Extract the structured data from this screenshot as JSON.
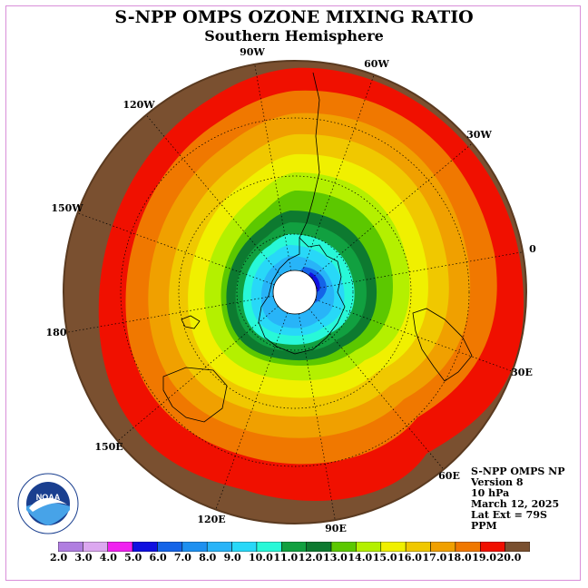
{
  "title": "S-NPP OMPS OZONE MIXING RATIO",
  "subtitle": "Southern Hemisphere",
  "longitude_labels": [
    "90W",
    "60W",
    "30W",
    "0",
    "30E",
    "60E",
    "90E",
    "120E",
    "150E",
    "180",
    "150W",
    "120W"
  ],
  "info": {
    "line1": "S-NPP OMPS NP",
    "line2": "Version 8",
    "line3": "10 hPa",
    "line4": "March 12, 2025",
    "line5": "Lat Ext = 79S",
    "line6": "PPM"
  },
  "logo_text": "NOAA",
  "colorbar": {
    "labels": [
      "2.0",
      "3.0",
      "4.0",
      "5.0",
      "6.0",
      "7.0",
      "8.0",
      "9.0",
      "10.0",
      "11.0",
      "12.0",
      "13.0",
      "14.0",
      "15.0",
      "16.0",
      "17.0",
      "18.0",
      "19.0",
      "20.0"
    ],
    "colors": [
      "#b07ee0",
      "#dca8f0",
      "#f020f0",
      "#1010e0",
      "#1464e8",
      "#1e90f0",
      "#28b4f8",
      "#28d8f8",
      "#28f8d8",
      "#11a040",
      "#0d7a30",
      "#5cc800",
      "#b4f000",
      "#f0f000",
      "#f0c800",
      "#f0a000",
      "#f07800",
      "#f01000",
      "#7a5030"
    ]
  },
  "colors": {
    "land_outline": "#000000",
    "map_border": "#5a3a20",
    "frame": "#d98fd9"
  }
}
